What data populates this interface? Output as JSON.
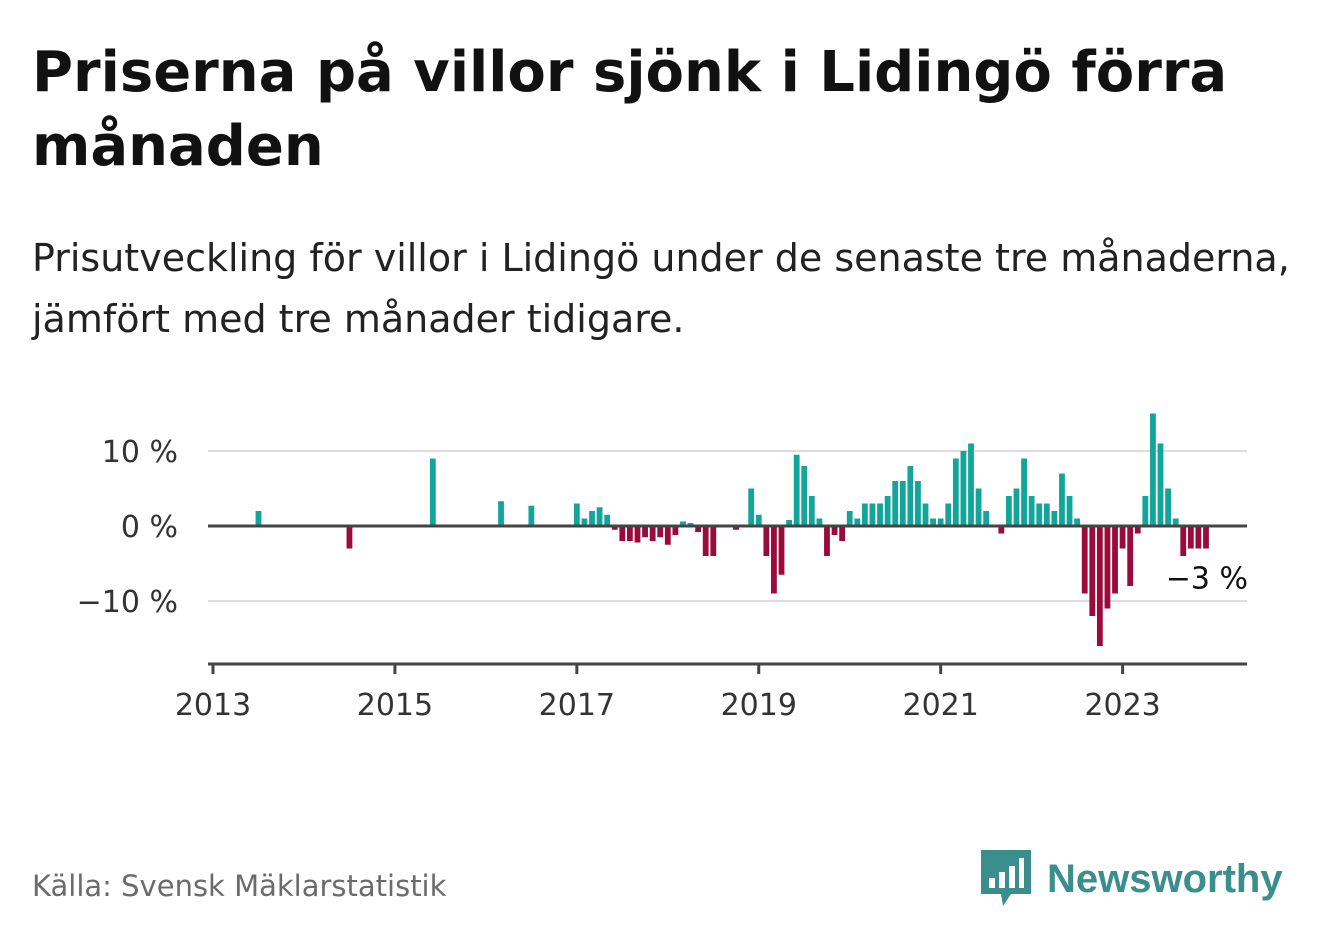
{
  "title": "Priserna på villor sjönk i Lidingö förra månaden",
  "subtitle": "Prisutveckling för villor i Lidingö under de senaste tre månaderna, jämfört med tre månader tidigare.",
  "source": "Källa: Svensk Mäklarstatistik",
  "logo": {
    "name": "Newsworthy",
    "icon": "bar-chart-speech-icon"
  },
  "colors": {
    "positive": "#12a59a",
    "negative": "#9a0a3b",
    "grid": "#dddddd",
    "axis": "#444444",
    "text": "#333333"
  },
  "chart_data": {
    "type": "bar",
    "title": "Priserna på villor sjönk i Lidingö förra månaden",
    "xlabel": "",
    "ylabel": "",
    "start": {
      "year": 2013,
      "month": 1
    },
    "ylim": [
      -19,
      15.5
    ],
    "y_ticks": [
      {
        "value": 10,
        "label": "10 %"
      },
      {
        "value": 0,
        "label": "0 %"
      },
      {
        "value": -10,
        "label": "−10 %"
      }
    ],
    "x_ticks": [
      "2013",
      "2015",
      "2017",
      "2019",
      "2021",
      "2023"
    ],
    "annotation": {
      "text": "−3 %",
      "target": "last"
    },
    "monthly_values": [
      0,
      0,
      0,
      0,
      0,
      0,
      2,
      0,
      0,
      0,
      0,
      0,
      0,
      0,
      0,
      0,
      0,
      0,
      -3,
      0,
      0,
      0,
      0,
      0,
      0,
      0,
      0,
      0,
      0,
      9,
      0,
      0,
      0,
      0,
      0,
      0,
      0,
      0,
      3.3,
      0,
      0,
      0,
      2.7,
      0,
      0,
      0,
      0,
      0,
      3,
      1,
      2,
      2.5,
      1.5,
      -0.5,
      -2,
      -2,
      -2.2,
      -1.5,
      -2,
      -1.5,
      -2.5,
      -1.2,
      0.6,
      0.4,
      -0.8,
      -4,
      -4,
      0,
      0,
      -0.5,
      0,
      5,
      1.5,
      -4,
      -9,
      -6.5,
      0.8,
      9.5,
      8,
      4,
      1,
      -4,
      -1.2,
      -2,
      2,
      1,
      3,
      3,
      3,
      4,
      6,
      6,
      8,
      6,
      3,
      1,
      1,
      3,
      9,
      10,
      11,
      5,
      2,
      0,
      -1,
      4,
      5,
      9,
      4,
      3,
      3,
      2,
      7,
      4,
      1,
      -9,
      -12,
      -16,
      -11,
      -9,
      -3,
      -8,
      -1,
      4,
      15,
      11,
      5,
      1,
      -4,
      -3,
      -3,
      -3
    ]
  }
}
